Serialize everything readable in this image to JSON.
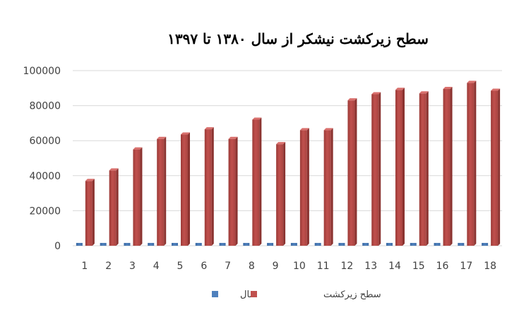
{
  "chart_data": {
    "type": "bar",
    "title": "سطح زیرکشت نیشکر از سال ۱۳۸۰ تا ۱۳۹۷",
    "xlabel": "",
    "ylabel": "",
    "categories": [
      "1",
      "2",
      "3",
      "4",
      "5",
      "6",
      "7",
      "8",
      "9",
      "10",
      "11",
      "12",
      "13",
      "14",
      "15",
      "16",
      "17",
      "18"
    ],
    "series": [
      {
        "name": "سال",
        "color": "#4f81bd",
        "values": [
          1380,
          1381,
          1382,
          1383,
          1384,
          1385,
          1386,
          1387,
          1388,
          1389,
          1390,
          1391,
          1392,
          1393,
          1394,
          1395,
          1396,
          1397
        ]
      },
      {
        "name": "سطح زیرکشت",
        "color": "#c0504d",
        "values": [
          37000,
          43000,
          55000,
          61000,
          63500,
          66500,
          61000,
          72000,
          58000,
          66000,
          66000,
          83000,
          86500,
          89000,
          87000,
          89500,
          93000,
          88500
        ]
      }
    ],
    "ylim": [
      0,
      100000
    ],
    "yticks": [
      "0",
      "20000",
      "40000",
      "60000",
      "80000",
      "100000"
    ],
    "grid": true,
    "legend_position": "bottom"
  }
}
